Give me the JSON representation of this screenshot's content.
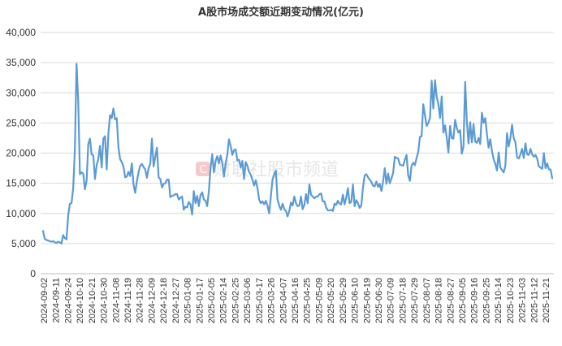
{
  "chart_data": {
    "type": "line",
    "title": "A股市场成交额近期变动情况(亿元)",
    "xlabel": "",
    "ylabel": "",
    "ylim": [
      0,
      40000
    ],
    "yticks": [
      "0",
      "5,000",
      "10,000",
      "15,000",
      "20,000",
      "25,000",
      "30,000",
      "35,000",
      "40,000"
    ],
    "xtick_labels": [
      "2024-09-02",
      "2024-09-11",
      "2024-09-24",
      "2024-10-10",
      "2024-10-21",
      "2024-10-30",
      "2024-11-08",
      "2024-11-19",
      "2024-11-28",
      "2024-12-09",
      "2024-12-18",
      "2024-12-27",
      "2025-01-08",
      "2025-01-17",
      "2025-02-05",
      "2025-02-14",
      "2025-02-25",
      "2025-03-06",
      "2025-03-17",
      "2025-03-26",
      "2025-04-07",
      "2025-04-16",
      "2025-04-25",
      "2025-05-09",
      "2025-05-20",
      "2025-05-29",
      "2025-06-10",
      "2025-06-19",
      "2025-06-30",
      "2025-07-09",
      "2025-07-18",
      "2025-07-29",
      "2025-08-07",
      "2025-08-18",
      "2025-08-27",
      "2025-09-05",
      "2025-09-16",
      "2025-09-25",
      "2025-10-14",
      "2025-10-23",
      "2025-11-03",
      "2025-11-12",
      "2025-11-21"
    ],
    "grid": true,
    "legend": "none",
    "color": "#5b9bd5",
    "series": [
      {
        "values": [
          7100,
          5800,
          5600,
          5500,
          5400,
          5300,
          5400,
          5200,
          5100,
          5300,
          5200,
          5000,
          6400,
          5900,
          5700,
          9600,
          11600,
          11700,
          14200,
          20600,
          34800,
          28700,
          16500,
          16800,
          16600,
          14000,
          15400,
          21500,
          22400,
          19800,
          19600,
          15700,
          18000,
          19000,
          21200,
          17600,
          22400,
          22800,
          17300,
          23200,
          26300,
          25800,
          27400,
          25600,
          25800,
          21000,
          19000,
          18500,
          17800,
          16000,
          16100,
          16900,
          16200,
          18300,
          14800,
          13400,
          15300,
          16800,
          17900,
          18200,
          17700,
          17300,
          15900,
          17500,
          18200,
          22400,
          17800,
          19400,
          20900,
          16000,
          15700,
          14300,
          14900,
          15000,
          15600,
          15600,
          12700,
          12900,
          13000,
          13200,
          13200,
          12300,
          12600,
          12800,
          10600,
          11100,
          11000,
          11900,
          11500,
          9800,
          13700,
          11700,
          12900,
          11200,
          13000,
          13500,
          12300,
          12100,
          11200,
          13700,
          17500,
          19800,
          16800,
          18700,
          19500,
          18300,
          19600,
          18400,
          16100,
          18300,
          19700,
          22300,
          21200,
          19700,
          20500,
          20600,
          18800,
          18900,
          17600,
          18700,
          15700,
          18500,
          17900,
          16900,
          16400,
          15600,
          14600,
          15500,
          14200,
          12300,
          11700,
          12000,
          11500,
          12100,
          11300,
          10000,
          12800,
          15600,
          16500,
          17100,
          12300,
          11300,
          10600,
          11600,
          10700,
          10400,
          9500,
          10400,
          11800,
          11300,
          12800,
          11700,
          11200,
          11300,
          12800,
          10700,
          11400,
          13200,
          11700,
          14800,
          13100,
          12800,
          12500,
          12800,
          12800,
          13200,
          13300,
          12000,
          12000,
          11000,
          10500,
          10500,
          10600,
          10400,
          11600,
          11400,
          12100,
          11600,
          11500,
          13100,
          11500,
          12600,
          14200,
          11700,
          11900,
          14800,
          11200,
          12200,
          11700,
          10900,
          11300,
          14300,
          16300,
          16500,
          16000,
          15600,
          15200,
          14600,
          14500,
          15300,
          14400,
          14900,
          13700,
          15300,
          17500,
          14900,
          16600,
          15000,
          15800,
          16700,
          19400,
          19200,
          19100,
          18100,
          18000,
          17900,
          18900,
          19700,
          16300,
          15400,
          17900,
          18400,
          18000,
          19200,
          20200,
          22700,
          22800,
          28100,
          26300,
          24500,
          25000,
          25800,
          32000,
          27400,
          32100,
          29300,
          28200,
          25800,
          29400,
          23400,
          24600,
          22600,
          20100,
          24500,
          22500,
          22400,
          25500,
          24200,
          23400,
          23800,
          19900,
          21100,
          31800,
          25300,
          21600,
          25100,
          21800,
          24800,
          21900,
          21700,
          22500,
          21500,
          26700,
          25000,
          25800,
          23200,
          20900,
          22300,
          20400,
          19000,
          18200,
          17100,
          20100,
          17600,
          17200,
          16800,
          17900,
          23300,
          21100,
          22500,
          24700,
          22500,
          21800,
          19300,
          19100,
          19800,
          20700,
          19200,
          21600,
          19800,
          19700,
          20700,
          19800,
          19400,
          19700,
          19100,
          17800,
          17600,
          17400,
          20000,
          17500,
          18300,
          17300,
          17300,
          15800
        ]
      }
    ]
  },
  "watermark": {
    "icon": "cailian-logo-icon",
    "text": "财联社股市频道"
  }
}
